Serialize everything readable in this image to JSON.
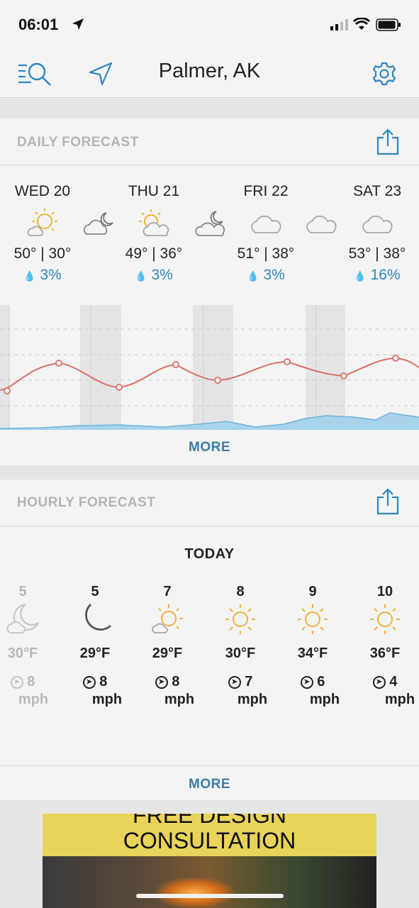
{
  "status_bar": {
    "time": "06:01"
  },
  "header": {
    "location": "Palmer, AK"
  },
  "daily": {
    "section_title": "DAILY FORECAST",
    "days": [
      {
        "name": "WED 20",
        "temps": "50° | 30°",
        "precip": "3%",
        "day_icon": "partly-sunny-icon",
        "night_icon": "cloudy-night-icon"
      },
      {
        "name": "THU 21",
        "temps": "49° | 36°",
        "precip": "3%",
        "day_icon": "partly-sunny-icon",
        "night_icon": "cloudy-night-icon"
      },
      {
        "name": "FRI 22",
        "temps": "51° | 38°",
        "precip": "3%",
        "day_icon": "cloud-icon",
        "night_icon": "cloud-icon"
      },
      {
        "name": "SAT 23",
        "temps": "53° | 38°",
        "precip": "16%",
        "day_icon": "cloud-icon",
        "night_icon": "cloud-icon"
      }
    ],
    "more_label": "MORE",
    "colors": {
      "temperature_line": "#d9706a",
      "precip_fill": "#a9d3ea",
      "night_band": "#e4e4e4"
    }
  },
  "hourly": {
    "section_title": "HOURLY FORECAST",
    "day_label": "TODAY",
    "hours": [
      {
        "hour": "5",
        "temp": "30°F",
        "wind": "8",
        "unit": "mph",
        "icon": "partly-cloudy-night-icon",
        "faded": true
      },
      {
        "hour": "5",
        "temp": "29°F",
        "wind": "8",
        "unit": "mph",
        "icon": "moon-icon",
        "faded": false
      },
      {
        "hour": "7",
        "temp": "29°F",
        "wind": "8",
        "unit": "mph",
        "icon": "partly-sunny-icon",
        "faded": false
      },
      {
        "hour": "8",
        "temp": "30°F",
        "wind": "7",
        "unit": "mph",
        "icon": "sun-icon",
        "faded": false
      },
      {
        "hour": "9",
        "temp": "34°F",
        "wind": "6",
        "unit": "mph",
        "icon": "sun-icon",
        "faded": false
      },
      {
        "hour": "10",
        "temp": "36°F",
        "wind": "4",
        "unit": "mph",
        "icon": "sun-icon",
        "faded": false
      }
    ],
    "more_label": "MORE"
  },
  "ad": {
    "line1": "FREE DESIGN",
    "line2": "CONSULTATION"
  },
  "colors": {
    "accent": "#3b7ca8",
    "sun": "#f0b23a"
  }
}
